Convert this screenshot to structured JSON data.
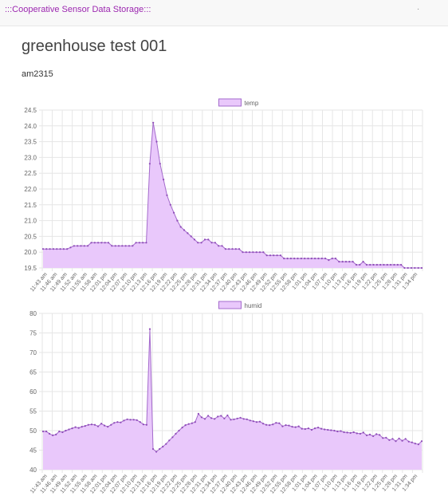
{
  "navbar": {
    "brand": ":::Cooperative Sensor Data Storage:::",
    "menu_mark": "."
  },
  "page": {
    "title": "greenhouse test 001",
    "sensor": "am2315"
  },
  "theme": {
    "fill": "#e9c8fb",
    "line": "#a46bcc",
    "point": "#8e4bb8",
    "grid": "#e6e6e6",
    "tick": "#666666"
  },
  "chart_data": [
    {
      "type": "area",
      "legend": "temp",
      "legend_position": "top",
      "grid": true,
      "ylim": [
        19.5,
        24.5
      ],
      "yticks": [
        19.5,
        20.0,
        20.5,
        21.0,
        21.5,
        22.0,
        22.5,
        23.0,
        23.5,
        24.0,
        24.5
      ],
      "ytick_decimals": 1,
      "x_labels": [
        "11:43 am",
        "11:46 am",
        "11:49 am",
        "11:52 am",
        "11:55 am",
        "11:58 am",
        "12:01 pm",
        "12:04 pm",
        "12:07 pm",
        "12:10 pm",
        "12:13 pm",
        "12:16 pm",
        "12:19 pm",
        "12:22 pm",
        "12:25 pm",
        "12:28 pm",
        "12:31 pm",
        "12:34 pm",
        "12:37 pm",
        "12:40 pm",
        "12:43 pm",
        "12:46 pm",
        "12:49 pm",
        "12:52 pm",
        "12:55 pm",
        "12:58 pm",
        "1:01 pm",
        "1:04 pm",
        "1:07 pm",
        "1:10 pm",
        "1:13 pm",
        "1:16 pm",
        "1:19 pm",
        "1:22 pm",
        "1:25 pm",
        "1:28 pm",
        "1:31 pm",
        "1:34 pm"
      ],
      "values": [
        20.1,
        20.1,
        20.1,
        20.1,
        20.1,
        20.1,
        20.1,
        20.1,
        20.15,
        20.2,
        20.2,
        20.2,
        20.2,
        20.2,
        20.3,
        20.3,
        20.3,
        20.3,
        20.3,
        20.3,
        20.2,
        20.2,
        20.2,
        20.2,
        20.2,
        20.2,
        20.2,
        20.3,
        20.3,
        20.3,
        20.3,
        22.8,
        24.1,
        23.5,
        22.8,
        22.3,
        21.8,
        21.5,
        21.25,
        21.0,
        20.8,
        20.7,
        20.6,
        20.5,
        20.4,
        20.3,
        20.3,
        20.4,
        20.4,
        20.3,
        20.3,
        20.2,
        20.2,
        20.1,
        20.1,
        20.1,
        20.1,
        20.1,
        20.0,
        20.0,
        20.0,
        20.0,
        20.0,
        20.0,
        20.0,
        19.9,
        19.9,
        19.9,
        19.9,
        19.9,
        19.8,
        19.8,
        19.8,
        19.8,
        19.8,
        19.8,
        19.8,
        19.8,
        19.8,
        19.8,
        19.8,
        19.8,
        19.8,
        19.75,
        19.8,
        19.8,
        19.7,
        19.7,
        19.7,
        19.7,
        19.7,
        19.6,
        19.6,
        19.7,
        19.6,
        19.6,
        19.6,
        19.6,
        19.6,
        19.6,
        19.6,
        19.6,
        19.6,
        19.6,
        19.6,
        19.5,
        19.5,
        19.5,
        19.5,
        19.5,
        19.5
      ]
    },
    {
      "type": "area",
      "legend": "humid",
      "legend_position": "top",
      "grid": true,
      "ylim": [
        40,
        80
      ],
      "yticks": [
        40,
        45,
        50,
        55,
        60,
        65,
        70,
        75,
        80
      ],
      "ytick_decimals": 0,
      "x_labels": [
        "11:43 am",
        "11:46 am",
        "11:49 am",
        "11:52 am",
        "11:55 am",
        "11:58 am",
        "12:01 pm",
        "12:04 pm",
        "12:07 pm",
        "12:10 pm",
        "12:13 pm",
        "12:16 pm",
        "12:19 pm",
        "12:22 pm",
        "12:25 pm",
        "12:28 pm",
        "12:31 pm",
        "12:34 pm",
        "12:37 pm",
        "12:40 pm",
        "12:43 pm",
        "12:46 pm",
        "12:49 pm",
        "12:52 pm",
        "12:55 pm",
        "12:58 pm",
        "1:01 pm",
        "1:04 pm",
        "1:07 pm",
        "1:10 pm",
        "1:13 pm",
        "1:16 pm",
        "1:19 pm",
        "1:22 pm",
        "1:25 pm",
        "1:28 pm",
        "1:31 pm",
        "1:34 pm"
      ],
      "values": [
        49.8,
        49.8,
        49.2,
        48.8,
        49.0,
        49.8,
        49.6,
        50.0,
        50.3,
        50.6,
        50.9,
        50.7,
        51.0,
        51.2,
        51.5,
        51.6,
        51.5,
        51.1,
        51.8,
        51.3,
        51.0,
        51.5,
        52.0,
        52.2,
        52.1,
        52.6,
        52.9,
        52.8,
        52.8,
        52.7,
        52.2,
        51.6,
        51.5,
        76.0,
        45.3,
        44.6,
        45.3,
        45.9,
        46.6,
        47.5,
        48.3,
        49.2,
        50.0,
        50.8,
        51.4,
        51.7,
        51.9,
        52.2,
        54.3,
        53.4,
        53.0,
        53.8,
        53.2,
        53.0,
        53.6,
        53.8,
        53.1,
        53.9,
        52.8,
        52.9,
        53.1,
        53.3,
        53.0,
        52.9,
        52.6,
        52.4,
        52.2,
        52.3,
        51.8,
        51.5,
        51.4,
        51.6,
        52.0,
        51.9,
        51.1,
        51.4,
        51.3,
        51.0,
        50.9,
        51.1,
        50.5,
        50.4,
        50.6,
        50.2,
        50.6,
        50.8,
        50.5,
        50.3,
        50.2,
        50.1,
        50.0,
        49.8,
        49.9,
        49.6,
        49.5,
        49.4,
        49.6,
        49.3,
        49.2,
        49.5,
        48.8,
        49.0,
        48.6,
        49.1,
        48.9,
        48.1,
        48.2,
        47.6,
        47.9,
        47.3,
        48.0,
        47.4,
        47.9,
        47.2,
        47.0,
        46.7,
        46.5,
        47.3
      ]
    }
  ]
}
